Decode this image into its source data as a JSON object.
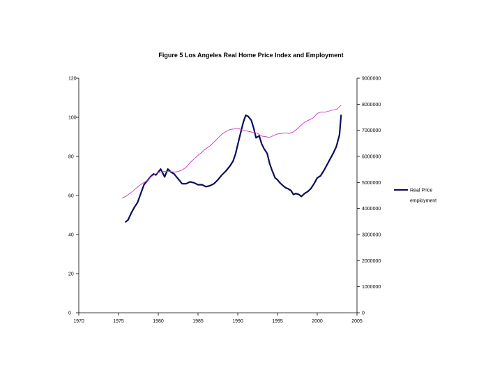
{
  "chart_data": {
    "type": "line",
    "title": "Figure 5 Los Angeles Real Home Price Index and Employment",
    "xlabel": "",
    "ylabel": "",
    "xlim": [
      1970,
      2005
    ],
    "ylim_left": [
      0,
      120
    ],
    "ylim_right": [
      0,
      9000000
    ],
    "x_ticks": [
      "1970",
      "1975",
      "1980",
      "1985",
      "1990",
      "1995",
      "2000",
      "2005"
    ],
    "y_ticks_left": [
      "0",
      "20",
      "40",
      "60",
      "80",
      "100",
      "120"
    ],
    "y_ticks_right": [
      "0",
      "1000000",
      "2000000",
      "3000000",
      "4000000",
      "5000000",
      "6000000",
      "7000000",
      "8000000",
      "9000000"
    ],
    "grid": false,
    "legend_position": "right",
    "series": [
      {
        "name": "Real Price",
        "axis": "left",
        "color": "#0b0e5a",
        "x": [
          1975.9,
          1976.2,
          1976.6,
          1977.0,
          1977.4,
          1977.8,
          1978.2,
          1978.6,
          1979.0,
          1979.4,
          1979.7,
          1980.0,
          1980.3,
          1980.5,
          1980.8,
          1981.2,
          1981.6,
          1982.0,
          1982.5,
          1983.0,
          1983.5,
          1984.0,
          1984.5,
          1985.0,
          1985.5,
          1986.0,
          1986.5,
          1987.0,
          1987.5,
          1988.0,
          1988.5,
          1989.0,
          1989.4,
          1989.7,
          1990.0,
          1990.3,
          1990.7,
          1991.0,
          1991.3,
          1991.7,
          1992.0,
          1992.3,
          1992.7,
          1993.0,
          1993.3,
          1993.7,
          1994.0,
          1994.3,
          1994.7,
          1995.0,
          1995.3,
          1995.7,
          1996.0,
          1996.3,
          1996.7,
          1997.0,
          1997.3,
          1997.7,
          1998.0,
          1998.4,
          1998.8,
          1999.2,
          1999.6,
          2000.0,
          2000.4,
          2000.8,
          2001.2,
          2001.6,
          2002.0,
          2002.4,
          2002.8,
          2003.0
        ],
        "values": [
          46.5,
          47.5,
          51,
          54,
          56.5,
          61,
          65.5,
          67.5,
          69.5,
          71,
          70.5,
          72,
          73.5,
          72,
          69.5,
          73.5,
          72,
          71,
          68.5,
          66,
          66,
          67,
          66.5,
          65.5,
          65.5,
          64.5,
          65,
          66,
          68,
          70.5,
          72.5,
          75,
          77.5,
          81,
          86,
          91,
          97.5,
          101,
          100.5,
          98.5,
          94.5,
          89.5,
          90.5,
          86.5,
          84,
          81.5,
          76.5,
          73,
          69,
          68,
          66.5,
          65,
          64,
          63.5,
          62.5,
          60.5,
          61,
          60.5,
          59.5,
          61,
          62,
          63.5,
          66,
          69,
          70,
          72.5,
          75.5,
          78.5,
          81.5,
          85,
          91,
          101
        ]
      },
      {
        "name": "employment",
        "axis": "right",
        "color": "#cc33cc",
        "x": [
          1975.5,
          1976.0,
          1976.5,
          1977.0,
          1977.5,
          1978.0,
          1978.5,
          1979.0,
          1979.5,
          1980.0,
          1980.5,
          1981.0,
          1981.5,
          1982.0,
          1982.5,
          1983.0,
          1983.5,
          1984.0,
          1984.5,
          1985.0,
          1985.5,
          1986.0,
          1986.5,
          1987.0,
          1987.5,
          1988.0,
          1988.5,
          1989.0,
          1989.5,
          1990.0,
          1990.5,
          1991.0,
          1991.5,
          1992.0,
          1992.5,
          1993.0,
          1993.5,
          1994.0,
          1994.5,
          1995.0,
          1995.5,
          1996.0,
          1996.5,
          1997.0,
          1997.5,
          1998.0,
          1998.5,
          1999.0,
          1999.5,
          2000.0,
          2000.5,
          2001.0,
          2001.5,
          2002.0,
          2002.5,
          2003.0
        ],
        "values": [
          4400000,
          4480000,
          4600000,
          4720000,
          4850000,
          4960000,
          5050000,
          5200000,
          5300000,
          5380000,
          5420000,
          5430000,
          5420000,
          5400000,
          5420000,
          5480000,
          5580000,
          5760000,
          5900000,
          6040000,
          6160000,
          6300000,
          6400000,
          6550000,
          6700000,
          6850000,
          6950000,
          7030000,
          7050000,
          7080000,
          7020000,
          6980000,
          6950000,
          6920000,
          6880000,
          6780000,
          6760000,
          6720000,
          6800000,
          6860000,
          6880000,
          6900000,
          6880000,
          6940000,
          7060000,
          7200000,
          7330000,
          7400000,
          7480000,
          7650000,
          7700000,
          7700000,
          7740000,
          7780000,
          7820000,
          7960000
        ]
      }
    ]
  }
}
